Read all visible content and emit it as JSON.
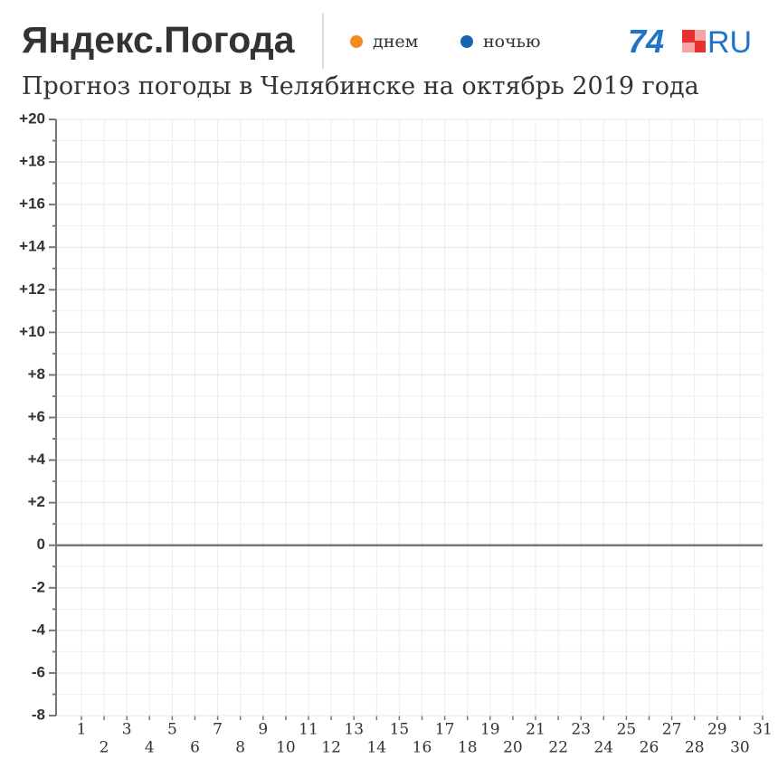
{
  "chart_data": {
    "type": "line",
    "title": "Яндекс.Погода",
    "subtitle": "Прогноз погоды в Челябинске на октябрь 2019 года",
    "logo": {
      "number": "74",
      "suffix": "RU"
    },
    "categories": [
      "1",
      "2",
      "3",
      "4",
      "5",
      "6",
      "7",
      "8",
      "9",
      "10",
      "11",
      "12",
      "13",
      "14",
      "15",
      "16",
      "17",
      "18",
      "19",
      "20",
      "21",
      "22",
      "23",
      "24",
      "25",
      "26",
      "27",
      "28",
      "29",
      "30",
      "31"
    ],
    "series": [
      {
        "name": "днем",
        "color": "#f28a1d",
        "values": [
          null,
          null,
          null,
          null,
          null,
          null,
          null,
          null,
          null,
          null,
          null,
          null,
          null,
          null,
          null,
          null,
          null,
          null,
          null,
          null,
          null,
          null,
          null,
          null,
          null,
          null,
          null,
          null,
          null,
          null,
          null
        ]
      },
      {
        "name": "ночью",
        "color": "#1565b0",
        "values": [
          null,
          null,
          null,
          null,
          null,
          null,
          null,
          null,
          null,
          null,
          null,
          null,
          null,
          null,
          null,
          null,
          null,
          null,
          null,
          null,
          null,
          null,
          null,
          null,
          null,
          null,
          null,
          null,
          null,
          null,
          null
        ]
      }
    ],
    "ylim": [
      -8,
      20
    ],
    "yticks": [
      -8,
      -6,
      -4,
      -2,
      0,
      {
        "value": 2,
        "label": "+2"
      },
      {
        "value": 4,
        "label": "+4"
      },
      {
        "value": 6,
        "label": "+6"
      },
      {
        "value": 8,
        "label": "+8"
      },
      {
        "value": 10,
        "label": "+10"
      },
      {
        "value": 12,
        "label": "+12"
      },
      {
        "value": 14,
        "label": "+14"
      },
      {
        "value": 16,
        "label": "+16"
      },
      {
        "value": 18,
        "label": "+18"
      },
      {
        "value": 20,
        "label": "+20"
      }
    ],
    "yminorticks": [
      -7,
      -5,
      -3,
      -1,
      1,
      3,
      5,
      7,
      9,
      11,
      13,
      15,
      17,
      19
    ],
    "grid": true
  }
}
